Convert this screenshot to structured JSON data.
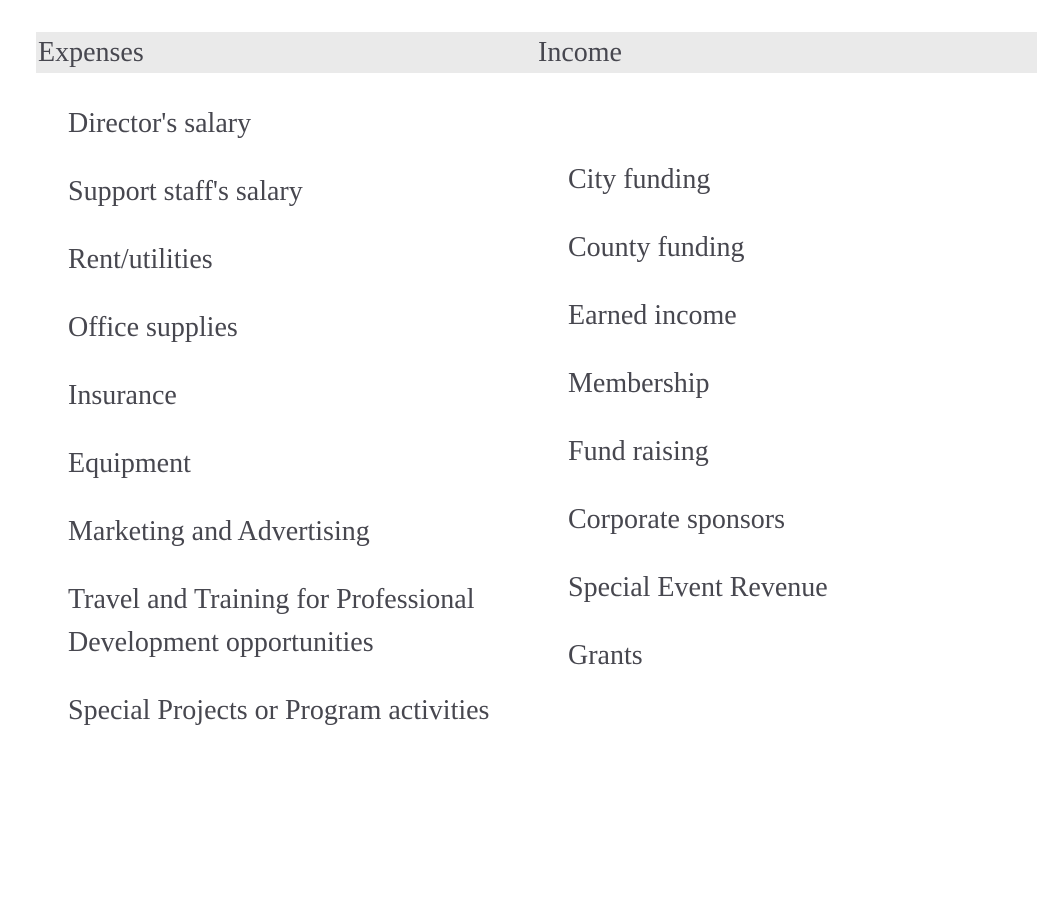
{
  "table": {
    "columns": [
      {
        "header": "Expenses",
        "items": [
          "Director's salary",
          "Support staff's salary",
          "Rent/utilities",
          "Office supplies",
          "Insurance",
          "Equipment",
          "Marketing and Advertising",
          "Travel and Training for Professional Development opportunities",
          "Special Projects or Program activities"
        ]
      },
      {
        "header": "Income",
        "items": [
          "City funding",
          "County funding",
          "Earned income",
          "Membership",
          "Fund raising",
          "Corporate sponsors",
          "Special Event Revenue",
          "Grants"
        ]
      }
    ]
  },
  "colors": {
    "page_background": "#ffffff",
    "header_background": "#eaeaea",
    "text": "#47474f"
  }
}
